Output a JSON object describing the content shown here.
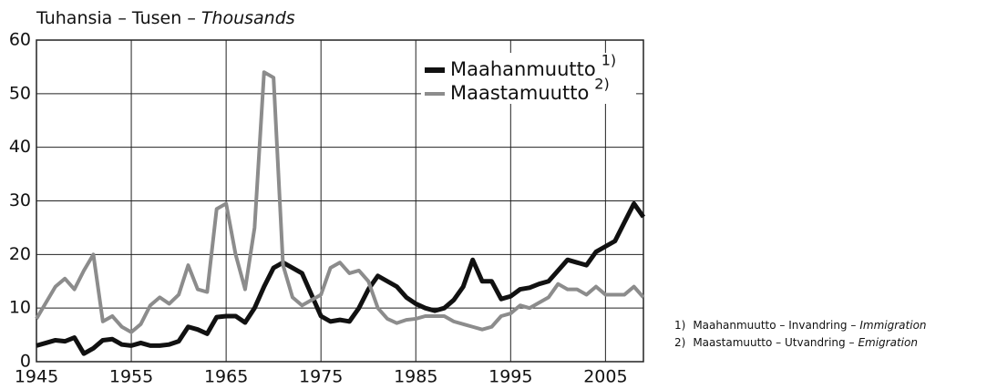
{
  "chart_data": {
    "type": "line",
    "title": "Tuhansia – Tusen –",
    "title_italic": "Thousands",
    "x": [
      1945,
      1946,
      1947,
      1948,
      1949,
      1950,
      1951,
      1952,
      1953,
      1954,
      1955,
      1956,
      1957,
      1958,
      1959,
      1960,
      1961,
      1962,
      1963,
      1964,
      1965,
      1966,
      1967,
      1968,
      1969,
      1970,
      1971,
      1972,
      1973,
      1974,
      1975,
      1976,
      1977,
      1978,
      1979,
      1980,
      1981,
      1982,
      1983,
      1984,
      1985,
      1986,
      1987,
      1988,
      1989,
      1990,
      1991,
      1992,
      1993,
      1994,
      1995,
      1996,
      1997,
      1998,
      1999,
      2000,
      2001,
      2002,
      2003,
      2004,
      2005,
      2006,
      2007,
      2008,
      2009
    ],
    "series": [
      {
        "name": "Maahanmuutto",
        "note": "1)",
        "color": "#111111",
        "values": [
          3,
          3.5,
          4,
          3.8,
          4.5,
          1.5,
          2.5,
          4,
          4.2,
          3.2,
          3,
          3.5,
          3,
          3,
          3.2,
          3.8,
          6.5,
          6,
          5.2,
          8.3,
          8.5,
          8.5,
          7.3,
          10,
          14,
          17.5,
          18.5,
          17.5,
          16.5,
          12.5,
          8.5,
          7.5,
          7.8,
          7.5,
          10,
          13.5,
          16,
          15,
          14,
          12,
          10.8,
          10,
          9.5,
          10,
          11.5,
          14,
          19,
          15,
          15,
          11.7,
          12.2,
          13.5,
          13.8,
          14.5,
          15,
          17,
          19,
          18.5,
          18,
          20.5,
          21.5,
          22.5,
          26,
          29.5,
          27
        ]
      },
      {
        "name": "Maastamuutto",
        "note": "2)",
        "color": "#8c8c8c",
        "values": [
          8,
          11,
          14,
          15.5,
          13.5,
          17,
          20,
          7.5,
          8.5,
          6.5,
          5.5,
          7,
          10.5,
          12,
          10.8,
          12.5,
          18,
          13.5,
          13,
          28.5,
          29.5,
          20,
          13.5,
          25,
          54,
          53,
          18,
          12,
          10.5,
          11.5,
          12.5,
          17.5,
          18.5,
          16.5,
          17,
          15,
          10,
          8,
          7.2,
          7.8,
          8,
          8.5,
          8.5,
          8.5,
          7.5,
          7,
          6.5,
          6,
          6.5,
          8.5,
          9,
          10.5,
          10,
          11,
          12,
          14.5,
          13.5,
          13.5,
          12.5,
          14,
          12.5,
          12.5,
          12.5,
          14,
          12
        ]
      }
    ],
    "xlim": [
      1945,
      2009
    ],
    "xticks": [
      1945,
      1955,
      1965,
      1975,
      1985,
      1995,
      2005
    ],
    "ylim": [
      0,
      60
    ],
    "yticks": [
      0,
      10,
      20,
      30,
      40,
      50,
      60
    ],
    "grid": true,
    "footnotes": [
      {
        "marker": "1)",
        "text": "Maahanmuutto – Invandring –",
        "italic": "Immigration"
      },
      {
        "marker": "2)",
        "text": "Maastamuutto – Utvandring –",
        "italic": "Emigration"
      }
    ]
  }
}
